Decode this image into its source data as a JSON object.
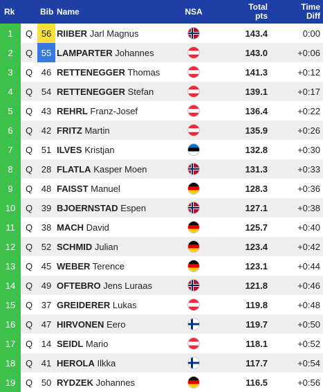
{
  "headers": {
    "rk": "Rk",
    "bib": "Bib",
    "name": "Name",
    "nsa": "NSA",
    "pts": "Total pts",
    "diff": "Time Diff"
  },
  "colors": {
    "header_bg": "#1e3fa6",
    "rank_bg": "#3ec14a",
    "bib_yellow": "#f7e03c",
    "bib_blue": "#3779e0"
  },
  "rows": [
    {
      "rk": "1",
      "q": "Q",
      "bib": "56",
      "ln": "RIIBER",
      "fn": "Jarl Magnus",
      "nsa": "NOR",
      "flag": "norway-flag-icon",
      "pts": "143.4",
      "diff": "0:00",
      "bib_color": "yellow"
    },
    {
      "rk": "2",
      "q": "Q",
      "bib": "55",
      "ln": "LAMPARTER",
      "fn": "Johannes",
      "nsa": "AUT",
      "flag": "austria-flag-icon",
      "pts": "143.0",
      "diff": "+0:06",
      "bib_color": "blue"
    },
    {
      "rk": "3",
      "q": "Q",
      "bib": "46",
      "ln": "RETTENEGGER",
      "fn": "Thomas",
      "nsa": "AUT",
      "flag": "austria-flag-icon",
      "pts": "141.3",
      "diff": "+0:12"
    },
    {
      "rk": "4",
      "q": "Q",
      "bib": "54",
      "ln": "RETTENEGGER",
      "fn": "Stefan",
      "nsa": "AUT",
      "flag": "austria-flag-icon",
      "pts": "139.1",
      "diff": "+0:17"
    },
    {
      "rk": "5",
      "q": "Q",
      "bib": "43",
      "ln": "REHRL",
      "fn": "Franz-Josef",
      "nsa": "AUT",
      "flag": "austria-flag-icon",
      "pts": "136.4",
      "diff": "+0:22"
    },
    {
      "rk": "6",
      "q": "Q",
      "bib": "42",
      "ln": "FRITZ",
      "fn": "Martin",
      "nsa": "AUT",
      "flag": "austria-flag-icon",
      "pts": "135.9",
      "diff": "+0:26"
    },
    {
      "rk": "7",
      "q": "Q",
      "bib": "51",
      "ln": "ILVES",
      "fn": "Kristjan",
      "nsa": "EST",
      "flag": "estonia-flag-icon",
      "pts": "132.8",
      "diff": "+0:30"
    },
    {
      "rk": "8",
      "q": "Q",
      "bib": "28",
      "ln": "FLATLA",
      "fn": "Kasper Moen",
      "nsa": "NOR",
      "flag": "norway-flag-icon",
      "pts": "131.3",
      "diff": "+0:33"
    },
    {
      "rk": "9",
      "q": "Q",
      "bib": "48",
      "ln": "FAISST",
      "fn": "Manuel",
      "nsa": "GER",
      "flag": "germany-flag-icon",
      "pts": "128.3",
      "diff": "+0:36"
    },
    {
      "rk": "10",
      "q": "Q",
      "bib": "39",
      "ln": "BJOERNSTAD",
      "fn": "Espen",
      "nsa": "NOR",
      "flag": "norway-flag-icon",
      "pts": "127.1",
      "diff": "+0:38"
    },
    {
      "rk": "11",
      "q": "Q",
      "bib": "38",
      "ln": "MACH",
      "fn": "David",
      "nsa": "GER",
      "flag": "germany-flag-icon",
      "pts": "125.7",
      "diff": "+0:40"
    },
    {
      "rk": "12",
      "q": "Q",
      "bib": "52",
      "ln": "SCHMID",
      "fn": "Julian",
      "nsa": "GER",
      "flag": "germany-flag-icon",
      "pts": "123.4",
      "diff": "+0:42"
    },
    {
      "rk": "13",
      "q": "Q",
      "bib": "45",
      "ln": "WEBER",
      "fn": "Terence",
      "nsa": "GER",
      "flag": "germany-flag-icon",
      "pts": "123.1",
      "diff": "+0:44"
    },
    {
      "rk": "14",
      "q": "Q",
      "bib": "49",
      "ln": "OFTEBRO",
      "fn": "Jens Luraas",
      "nsa": "NOR",
      "flag": "norway-flag-icon",
      "pts": "121.8",
      "diff": "+0:46"
    },
    {
      "rk": "15",
      "q": "Q",
      "bib": "37",
      "ln": "GREIDERER",
      "fn": "Lukas",
      "nsa": "AUT",
      "flag": "austria-flag-icon",
      "pts": "119.8",
      "diff": "+0:48"
    },
    {
      "rk": "16",
      "q": "Q",
      "bib": "47",
      "ln": "HIRVONEN",
      "fn": "Eero",
      "nsa": "FIN",
      "flag": "finland-flag-icon",
      "pts": "119.7",
      "diff": "+0:50"
    },
    {
      "rk": "17",
      "q": "Q",
      "bib": "14",
      "ln": "SEIDL",
      "fn": "Mario",
      "nsa": "AUT",
      "flag": "austria-flag-icon",
      "pts": "118.1",
      "diff": "+0:52"
    },
    {
      "rk": "18",
      "q": "Q",
      "bib": "41",
      "ln": "HEROLA",
      "fn": "Ilkka",
      "nsa": "FIN",
      "flag": "finland-flag-icon",
      "pts": "117.7",
      "diff": "+0:54"
    },
    {
      "rk": "19",
      "q": "Q",
      "bib": "50",
      "ln": "RYDZEK",
      "fn": "Johannes",
      "nsa": "GER",
      "flag": "germany-flag-icon",
      "pts": "116.5",
      "diff": "+0:56"
    }
  ]
}
